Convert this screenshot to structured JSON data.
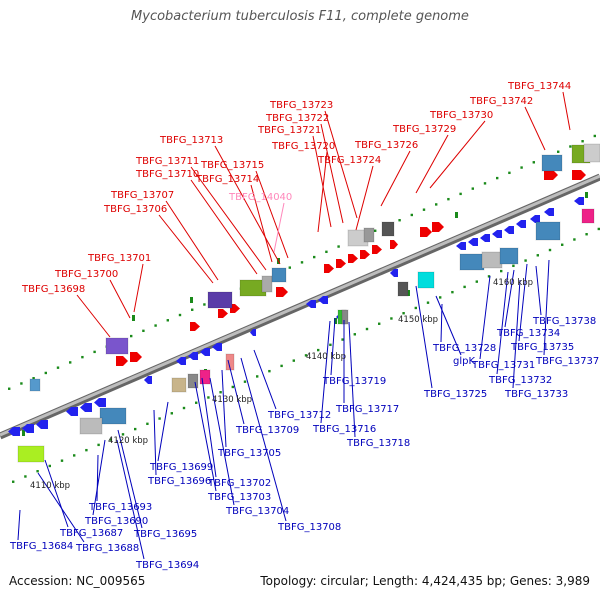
{
  "title": "Mycobacterium tuberculosis F11, complete genome",
  "footer": {
    "accession": "Accession: NC_009565",
    "summary": "Topology: circular; Length: 4,424,435 bp; Genes: 3,989"
  },
  "colors": {
    "plus_strand_label": "#dd0000",
    "minus_strand_label": "#0000bb",
    "pseudo_label": "#ff88bb",
    "backbone": "#888888"
  },
  "scale_ticks": [
    {
      "id": "kbp-4110",
      "label": "4110 kbp"
    },
    {
      "id": "kbp-4120",
      "label": "4120 kbp"
    },
    {
      "id": "kbp-4130",
      "label": "4130 kbp"
    },
    {
      "id": "kbp-4140",
      "label": "4140 kbp"
    },
    {
      "id": "kbp-4150",
      "label": "4150 kbp"
    },
    {
      "id": "kbp-4160",
      "label": "4160 kbp"
    }
  ],
  "upper_labels": [
    {
      "id": "TBFG_13744",
      "text": "TBFG_13744",
      "color": "#dd0000"
    },
    {
      "id": "TBFG_13742",
      "text": "TBFG_13742",
      "color": "#dd0000"
    },
    {
      "id": "TBFG_13730",
      "text": "TBFG_13730",
      "color": "#dd0000"
    },
    {
      "id": "TBFG_13729",
      "text": "TBFG_13729",
      "color": "#dd0000"
    },
    {
      "id": "TBFG_13723",
      "text": "TBFG_13723",
      "color": "#dd0000"
    },
    {
      "id": "TBFG_13722",
      "text": "TBFG_13722",
      "color": "#dd0000"
    },
    {
      "id": "TBFG_13721",
      "text": "TBFG_13721",
      "color": "#dd0000"
    },
    {
      "id": "TBFG_13726",
      "text": "TBFG_13726",
      "color": "#dd0000"
    },
    {
      "id": "TBFG_13713",
      "text": "TBFG_13713",
      "color": "#dd0000"
    },
    {
      "id": "TBFG_13720",
      "text": "TBFG_13720",
      "color": "#dd0000"
    },
    {
      "id": "TBFG_13724",
      "text": "TBFG_13724",
      "color": "#dd0000"
    },
    {
      "id": "TBFG_13711",
      "text": "TBFG_13711",
      "color": "#dd0000"
    },
    {
      "id": "TBFG_13715",
      "text": "TBFG_13715",
      "color": "#dd0000"
    },
    {
      "id": "TBFG_13710",
      "text": "TBFG_13710",
      "color": "#dd0000"
    },
    {
      "id": "TBFG_13714",
      "text": "TBFG_13714",
      "color": "#dd0000"
    },
    {
      "id": "TBFG_13707",
      "text": "TBFG_13707",
      "color": "#dd0000"
    },
    {
      "id": "TBFG_14040",
      "text": "TBFG_14040",
      "color": "#ff88bb"
    },
    {
      "id": "TBFG_13706",
      "text": "TBFG_13706",
      "color": "#dd0000"
    },
    {
      "id": "TBFG_13701",
      "text": "TBFG_13701",
      "color": "#dd0000"
    },
    {
      "id": "TBFG_13700",
      "text": "TBFG_13700",
      "color": "#dd0000"
    },
    {
      "id": "TBFG_13698",
      "text": "TBFG_13698",
      "color": "#dd0000"
    }
  ],
  "lower_labels": [
    {
      "id": "TBFG_13738",
      "text": "TBFG_13738",
      "color": "#0000bb"
    },
    {
      "id": "TBFG_13734",
      "text": "TBFG_13734",
      "color": "#0000bb"
    },
    {
      "id": "TBFG_13735",
      "text": "TBFG_13735",
      "color": "#0000bb"
    },
    {
      "id": "TBFG_13728",
      "text": "TBFG_13728",
      "color": "#0000bb"
    },
    {
      "id": "TBFG_13737",
      "text": "TBFG_13737",
      "color": "#0000bb"
    },
    {
      "id": "TBFG_13731",
      "text": "TBFG_13731",
      "color": "#0000bb"
    },
    {
      "id": "glpK",
      "text": "glpK",
      "color": "#0000bb"
    },
    {
      "id": "TBFG_13732",
      "text": "TBFG_13732",
      "color": "#0000bb"
    },
    {
      "id": "TBFG_13719",
      "text": "TBFG_13719",
      "color": "#0000bb"
    },
    {
      "id": "TBFG_13725",
      "text": "TBFG_13725",
      "color": "#0000bb"
    },
    {
      "id": "TBFG_13733",
      "text": "TBFG_13733",
      "color": "#0000bb"
    },
    {
      "id": "TBFG_13717",
      "text": "TBFG_13717",
      "color": "#0000bb"
    },
    {
      "id": "TBFG_13712",
      "text": "TBFG_13712",
      "color": "#0000bb"
    },
    {
      "id": "TBFG_13709",
      "text": "TBFG_13709",
      "color": "#0000bb"
    },
    {
      "id": "TBFG_13716",
      "text": "TBFG_13716",
      "color": "#0000bb"
    },
    {
      "id": "TBFG_13718",
      "text": "TBFG_13718",
      "color": "#0000bb"
    },
    {
      "id": "TBFG_13705",
      "text": "TBFG_13705",
      "color": "#0000bb"
    },
    {
      "id": "TBFG_13699",
      "text": "TBFG_13699",
      "color": "#0000bb"
    },
    {
      "id": "TBFG_13696",
      "text": "TBFG_13696",
      "color": "#0000bb"
    },
    {
      "id": "TBFG_13702",
      "text": "TBFG_13702",
      "color": "#0000bb"
    },
    {
      "id": "TBFG_13703",
      "text": "TBFG_13703",
      "color": "#0000bb"
    },
    {
      "id": "TBFG_13704",
      "text": "TBFG_13704",
      "color": "#0000bb"
    },
    {
      "id": "TBFG_13708",
      "text": "TBFG_13708",
      "color": "#0000bb"
    },
    {
      "id": "TBFG_13693",
      "text": "TBFG_13693",
      "color": "#0000bb"
    },
    {
      "id": "TBFG_13690",
      "text": "TBFG_13690",
      "color": "#0000bb"
    },
    {
      "id": "TBFG_13695",
      "text": "TBFG_13695",
      "color": "#0000bb"
    },
    {
      "id": "TBFG_13687",
      "text": "TBFG_13687",
      "color": "#0000bb"
    },
    {
      "id": "TBFG_13684",
      "text": "TBFG_13684",
      "color": "#0000bb"
    },
    {
      "id": "TBFG_13688",
      "text": "TBFG_13688",
      "color": "#0000bb"
    },
    {
      "id": "TBFG_13694",
      "text": "TBFG_13694",
      "color": "#0000bb"
    }
  ]
}
